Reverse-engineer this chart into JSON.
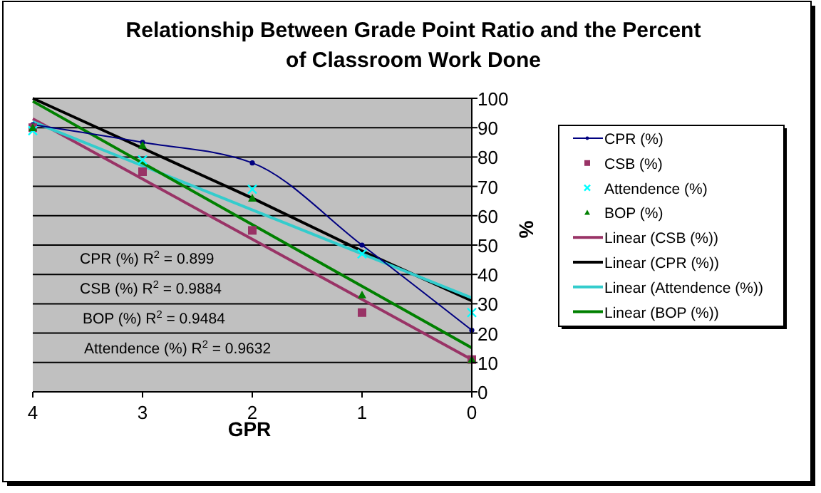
{
  "chart_data": {
    "type": "scatter",
    "title": "Relationship Between Grade Point Ratio and the Percent of Classroom Work Done",
    "xlabel": "GPR",
    "ylabel": "%",
    "x": [
      4,
      3,
      2,
      1,
      0
    ],
    "xlim": [
      4,
      0
    ],
    "xticks": [
      4,
      3,
      2,
      1,
      0
    ],
    "ylim": [
      0,
      100
    ],
    "yticks": [
      0,
      10,
      20,
      30,
      40,
      50,
      60,
      70,
      80,
      90,
      100
    ],
    "grid": "y",
    "legend": "right",
    "series": [
      {
        "name": "CPR (%)",
        "type": "line",
        "marker": "circle",
        "color": "#000080",
        "values": [
          91,
          85,
          78,
          50,
          21
        ]
      },
      {
        "name": "CSB (%)",
        "marker": "square",
        "color": "#993366",
        "values": [
          90,
          75,
          55,
          27,
          11
        ]
      },
      {
        "name": "Attendence (%)",
        "marker": "cross",
        "color": "#00ffff",
        "values": [
          89,
          79,
          69,
          47,
          27
        ]
      },
      {
        "name": "BOP (%)",
        "marker": "triangle",
        "color": "#008000",
        "values": [
          90,
          84,
          66,
          33,
          11
        ]
      },
      {
        "name": "Linear (CSB (%))",
        "type": "line",
        "marker": "none",
        "color": "#993366",
        "values": [
          93,
          72.5,
          52,
          31.5,
          11
        ]
      },
      {
        "name": "Linear (CPR (%))",
        "type": "line",
        "marker": "none",
        "color": "#000000",
        "values": [
          100,
          83,
          66,
          48,
          31
        ]
      },
      {
        "name": "Linear (Attendence (%))",
        "type": "line",
        "marker": "none",
        "color": "#33cccc",
        "values": [
          92,
          77,
          62,
          47,
          32
        ]
      },
      {
        "name": "Linear (BOP (%))",
        "type": "line",
        "marker": "none",
        "color": "#008000",
        "values": [
          99,
          78,
          57,
          36,
          15
        ]
      }
    ],
    "annotations": [
      "CPR (%) R$^{2}$ = 0.899",
      "CSB (%) R$^{2}$ = 0.9884",
      "BOP (%) R$^{2}$ = 0.9484",
      "Attendence (%)  R$^{2}$ = 0.9632"
    ]
  }
}
